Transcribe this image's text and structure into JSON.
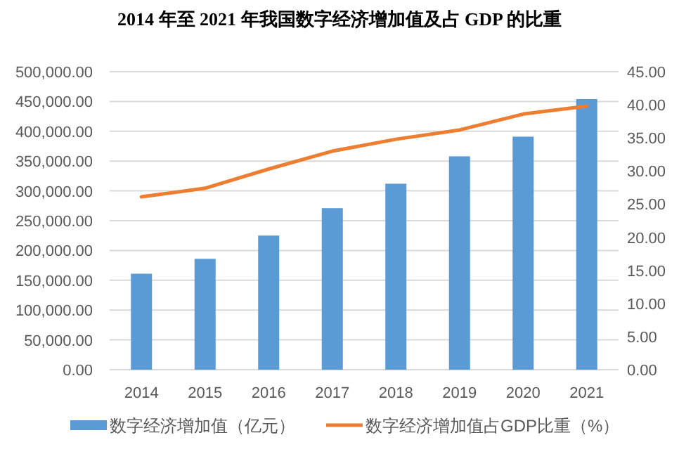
{
  "chart_data": {
    "type": "bar",
    "title": "2014 年至 2021 年我国数字经济增加值及占 GDP 的比重",
    "categories": [
      "2014",
      "2015",
      "2016",
      "2017",
      "2018",
      "2019",
      "2020",
      "2021"
    ],
    "series": [
      {
        "name": "数字经济增加值（亿元）",
        "color": "#5b9bd5",
        "values": [
          161000,
          186000,
          225000,
          271000,
          312000,
          358000,
          391000,
          454000
        ]
      },
      {
        "name": "数字经济增加值占GDP比重（%）",
        "type": "line",
        "axis": "y2",
        "color": "#ed7d31",
        "values": [
          26.1,
          27.4,
          30.3,
          33.0,
          34.8,
          36.2,
          38.6,
          39.8
        ]
      }
    ],
    "ylim": [
      0,
      500000
    ],
    "yticks": [
      {
        "value": 0,
        "label": "0.00"
      },
      {
        "value": 50000,
        "label": "50,000.00"
      },
      {
        "value": 100000,
        "label": "100,000.00"
      },
      {
        "value": 150000,
        "label": "150,000.00"
      },
      {
        "value": 200000,
        "label": "200,000.00"
      },
      {
        "value": 250000,
        "label": "250,000.00"
      },
      {
        "value": 300000,
        "label": "300,000.00"
      },
      {
        "value": 350000,
        "label": "350,000.00"
      },
      {
        "value": 400000,
        "label": "400,000.00"
      },
      {
        "value": 450000,
        "label": "450,000.00"
      },
      {
        "value": 500000,
        "label": "500,000.00"
      }
    ],
    "y2lim": [
      0,
      45
    ],
    "y2ticks": [
      {
        "value": 0,
        "label": "0.00"
      },
      {
        "value": 5,
        "label": "5.00"
      },
      {
        "value": 10,
        "label": "10.00"
      },
      {
        "value": 15,
        "label": "15.00"
      },
      {
        "value": 20,
        "label": "20.00"
      },
      {
        "value": 25,
        "label": "25.00"
      },
      {
        "value": 30,
        "label": "30.00"
      },
      {
        "value": 35,
        "label": "35.00"
      },
      {
        "value": 40,
        "label": "40.00"
      },
      {
        "value": 45,
        "label": "45.00"
      }
    ],
    "grid": "y",
    "legend": "bottom"
  }
}
